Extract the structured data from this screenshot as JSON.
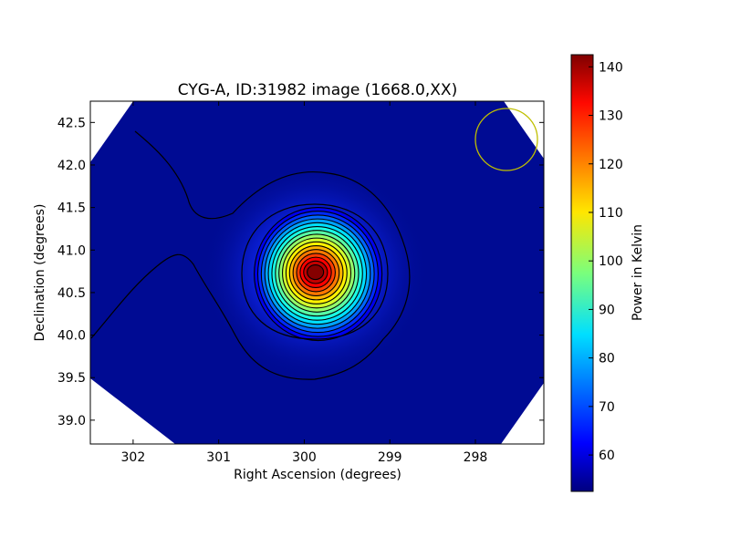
{
  "chart_data": {
    "type": "heatmap",
    "title": "CYG-A, ID:31982 image (1668.0,XX)",
    "xlabel": "Right Ascension (degrees)",
    "ylabel": "Declination (degrees)",
    "xlim": [
      302.5,
      297.2
    ],
    "ylim": [
      38.72,
      42.75
    ],
    "x_ticks": [
      302,
      301,
      300,
      299,
      298
    ],
    "y_ticks": [
      39.0,
      39.5,
      40.0,
      40.5,
      41.0,
      41.5,
      42.0,
      42.5
    ],
    "colorbar": {
      "label": "Power in Kelvin",
      "range": [
        52.5,
        142.5
      ],
      "ticks": [
        60,
        70,
        80,
        90,
        100,
        110,
        120,
        130,
        140
      ],
      "colormap": "jet"
    },
    "source": {
      "ra": 299.87,
      "dec": 40.74,
      "peak": 142,
      "background": 55
    },
    "beam_circle": {
      "ra": 297.65,
      "dec": 42.3,
      "color": "#bfbf00"
    },
    "contour_color": "#000000"
  }
}
